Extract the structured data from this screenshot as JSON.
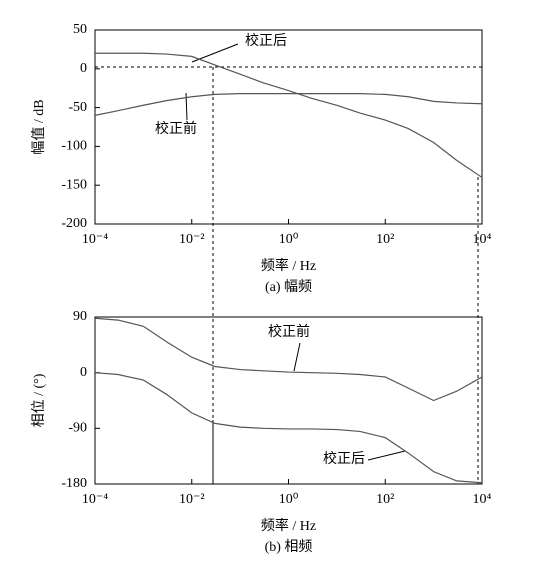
{
  "chart_data": [
    {
      "type": "line",
      "caption": "(a) 幅频",
      "xlabel": "频率 / Hz",
      "ylabel": "幅值 / dB",
      "xscale": "log",
      "x": [
        0.0001,
        0.0003,
        0.001,
        0.003,
        0.01,
        0.03,
        0.1,
        0.3,
        1,
        3,
        10,
        30,
        100,
        300,
        1000,
        3000,
        10000
      ],
      "series": [
        {
          "name": "校正后",
          "color": "#555555",
          "values": [
            20,
            20,
            20,
            19,
            16,
            5,
            -7,
            -18,
            -28,
            -38,
            -47,
            -57,
            -66,
            -77,
            -95,
            -118,
            -140
          ]
        },
        {
          "name": "校正前",
          "color": "#555555",
          "values": [
            -60,
            -54,
            -47,
            -41,
            -36,
            -33,
            -32,
            -32,
            -32,
            -32,
            -32,
            -32,
            -33,
            -36,
            -42,
            -44,
            -45
          ]
        }
      ],
      "xlim": [
        0.0001,
        10000
      ],
      "xticks": [
        {
          "value": 0.0001,
          "label": "10⁻⁴"
        },
        {
          "value": 0.01,
          "label": "10⁻²"
        },
        {
          "value": 1,
          "label": "10⁰"
        },
        {
          "value": 100,
          "label": "10²"
        },
        {
          "value": 10000,
          "label": "10⁴"
        }
      ],
      "ylim": [
        -200,
        50
      ],
      "yticks": [
        -200,
        -150,
        -100,
        -50,
        0,
        50
      ],
      "grid": false
    },
    {
      "type": "line",
      "caption": "(b) 相频",
      "xlabel": "频率 / Hz",
      "ylabel": "相位 / (°)",
      "xscale": "log",
      "x": [
        0.0001,
        0.0003,
        0.001,
        0.003,
        0.01,
        0.03,
        0.1,
        0.3,
        1,
        3,
        10,
        30,
        100,
        300,
        1000,
        3000,
        10000
      ],
      "series": [
        {
          "name": "校正前",
          "color": "#555555",
          "values": [
            88,
            85,
            75,
            50,
            25,
            10,
            5,
            3,
            1,
            0,
            -1,
            -3,
            -7,
            -25,
            -45,
            -30,
            -7
          ]
        },
        {
          "name": "校正后",
          "color": "#555555",
          "values": [
            0,
            -3,
            -12,
            -35,
            -65,
            -82,
            -88,
            -90,
            -91,
            -91,
            -92,
            -95,
            -105,
            -130,
            -160,
            -175,
            -178
          ]
        }
      ],
      "xlim": [
        0.0001,
        10000
      ],
      "xticks": [
        {
          "value": 0.0001,
          "label": "10⁻⁴"
        },
        {
          "value": 0.01,
          "label": "10⁻²"
        },
        {
          "value": 1,
          "label": "10⁰"
        },
        {
          "value": 100,
          "label": "10²"
        },
        {
          "value": 10000,
          "label": "10⁴"
        }
      ],
      "ylim": [
        -180,
        90
      ],
      "yticks": [
        -180,
        -90,
        0,
        90
      ],
      "grid": false
    }
  ]
}
